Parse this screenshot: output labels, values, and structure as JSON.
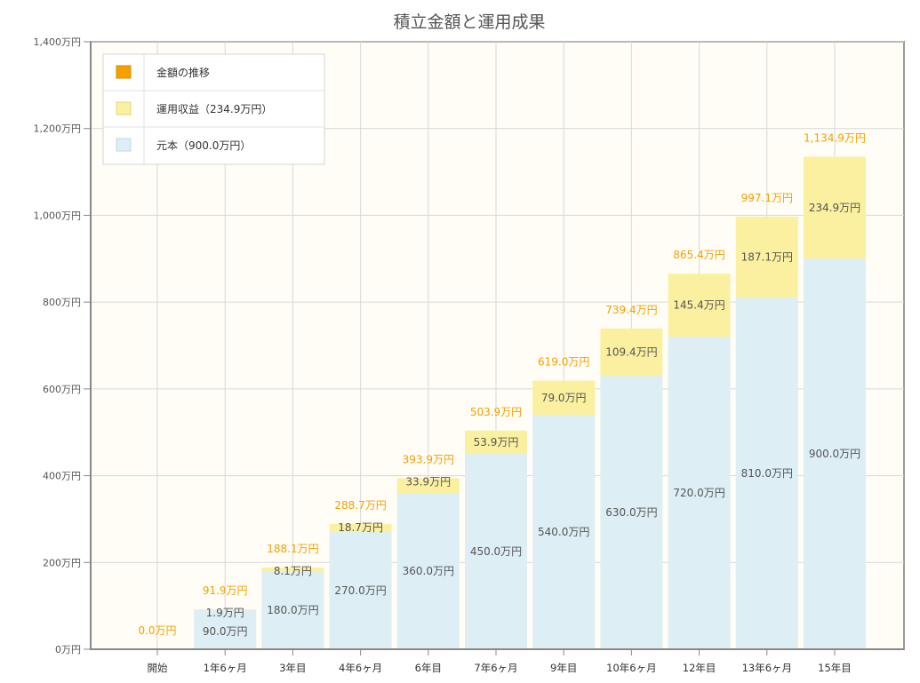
{
  "chart_data": {
    "type": "bar",
    "stacked": true,
    "title": "積立金額と運用成果",
    "categories": [
      "開始",
      "1年6ヶ月",
      "3年目",
      "4年6ヶ月",
      "6年目",
      "7年6ヶ月",
      "9年目",
      "10年6ヶ月",
      "12年目",
      "13年6ヶ月",
      "15年目"
    ],
    "series": [
      {
        "name": "元本（900.0万円）",
        "color": "#ddeef5",
        "values": [
          0,
          90.0,
          180.0,
          270.0,
          360.0,
          450.0,
          540.0,
          630.0,
          720.0,
          810.0,
          900.0
        ],
        "labels": [
          "",
          "90.0万円",
          "180.0万円",
          "270.0万円",
          "360.0万円",
          "450.0万円",
          "540.0万円",
          "630.0万円",
          "720.0万円",
          "810.0万円",
          "900.0万円"
        ]
      },
      {
        "name": "運用収益（234.9万円）",
        "color": "#fbf0a0",
        "values": [
          0,
          1.9,
          8.1,
          18.7,
          33.9,
          53.9,
          79.0,
          109.4,
          145.4,
          187.1,
          234.9
        ],
        "labels": [
          "",
          "1.9万円",
          "8.1万円",
          "18.7万円",
          "33.9万円",
          "53.9万円",
          "79.0万円",
          "109.4万円",
          "145.4万円",
          "187.1万円",
          "234.9万円"
        ]
      }
    ],
    "totals": {
      "name": "金額の推移",
      "color": "#f5a000",
      "values": [
        0.0,
        91.9,
        188.1,
        288.7,
        393.9,
        503.9,
        619.0,
        739.4,
        865.4,
        997.1,
        1134.9
      ],
      "labels": [
        "0.0万円",
        "91.9万円",
        "188.1万円",
        "288.7万円",
        "393.9万円",
        "503.9万円",
        "619.0万円",
        "739.4万円",
        "865.4万円",
        "997.1万円",
        "1,134.9万円"
      ]
    },
    "ylim": [
      0,
      1400
    ],
    "yticks": [
      0,
      200,
      400,
      600,
      800,
      1000,
      1200,
      1400
    ],
    "ytick_labels": [
      "0万円",
      "200万円",
      "400万円",
      "600万円",
      "800万円",
      "1,000万円",
      "1,200万円",
      "1,400万円"
    ],
    "grid": true,
    "legend_position": "top-left",
    "colors": {
      "plot_background": "#fffdf5",
      "grid": "#d8d8d8",
      "axis": "#999999"
    }
  }
}
